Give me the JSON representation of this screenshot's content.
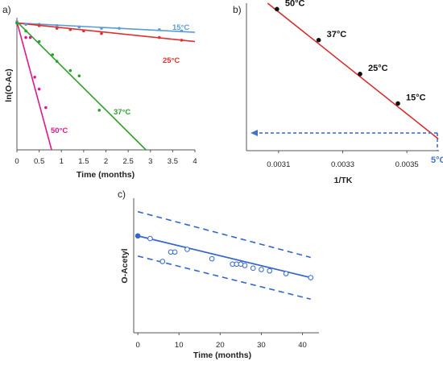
{
  "chart_data": [
    {
      "panel": "a)",
      "type": "scatter",
      "xlabel": "Time (months)",
      "ylabel": "ln(O-Ac)",
      "xlim": [
        0,
        4
      ],
      "ylim": [
        0,
        1
      ],
      "xticks": [
        "0",
        "0.5",
        "1",
        "1.5",
        "2",
        "2.5",
        "3",
        "3.5",
        "4"
      ],
      "grid": false,
      "series": [
        {
          "name": "15°C",
          "color": "#5b9bd5",
          "x": [
            0,
            0.2,
            0.5,
            0.9,
            1.4,
            1.9,
            2.3,
            3.2,
            3.7
          ],
          "y": [
            0.97,
            0.95,
            0.95,
            0.94,
            0.93,
            0.92,
            0.92,
            0.91,
            0.9
          ],
          "fit": [
            [
              0,
              0.96
            ],
            [
              4,
              0.89
            ]
          ]
        },
        {
          "name": "25°C",
          "color": "#e03030",
          "x": [
            0,
            0.5,
            0.9,
            1.2,
            1.5,
            1.9,
            3.2,
            3.7
          ],
          "y": [
            0.96,
            0.94,
            0.92,
            0.91,
            0.9,
            0.88,
            0.85,
            0.83
          ],
          "fit": [
            [
              0,
              0.96
            ],
            [
              4,
              0.82
            ]
          ]
        },
        {
          "name": "37°C",
          "color": "#2ca02c",
          "x": [
            0,
            0.2,
            0.5,
            0.8,
            0.9,
            1.2,
            1.4,
            1.85
          ],
          "y": [
            0.96,
            0.9,
            0.82,
            0.72,
            0.67,
            0.6,
            0.56,
            0.3
          ],
          "fit": [
            [
              0,
              0.97
            ],
            [
              2.9,
              0
            ]
          ]
        },
        {
          "name": "50°C",
          "color": "#e0188c",
          "x": [
            0.2,
            0.3,
            0.4,
            0.5,
            0.65
          ],
          "y": [
            0.85,
            0.85,
            0.55,
            0.46,
            0.32
          ],
          "fit": [
            [
              0,
              0.97
            ],
            [
              0.78,
              0
            ]
          ]
        }
      ]
    },
    {
      "panel": "b)",
      "type": "scatter",
      "xlabel": "1/TK",
      "xlim": [
        0.003,
        0.0036
      ],
      "xticks": [
        "0.0031",
        "0.0033",
        "0.0035"
      ],
      "color": "#d62728",
      "points": [
        {
          "label": "50°C",
          "x": 0.003095,
          "y": 0.96
        },
        {
          "label": "37°C",
          "x": 0.003225,
          "y": 0.75
        },
        {
          "label": "25°C",
          "x": 0.003354,
          "y": 0.52
        },
        {
          "label": "15°C",
          "x": 0.003472,
          "y": 0.32
        }
      ],
      "fit": [
        [
          0.003066,
          1.0
        ],
        [
          0.003598,
          0.08
        ]
      ],
      "extrapolation": {
        "label": "5°C",
        "x": 0.003595,
        "y": 0.12,
        "color": "#4472c4"
      }
    },
    {
      "panel": "c)",
      "type": "scatter",
      "xlabel": "Time (months)",
      "ylabel": "O-Acetyl",
      "xlim": [
        -1,
        44
      ],
      "ylim": [
        0,
        1
      ],
      "xticks": [
        "0",
        "10",
        "20",
        "30",
        "40"
      ],
      "color": "#3366cc",
      "points": {
        "x": [
          0,
          3,
          6,
          8,
          9,
          12,
          18,
          23,
          24,
          25,
          26,
          28,
          30,
          32,
          36,
          42
        ],
        "y": [
          0.72,
          0.7,
          0.53,
          0.6,
          0.6,
          0.62,
          0.55,
          0.51,
          0.51,
          0.51,
          0.5,
          0.48,
          0.47,
          0.46,
          0.44,
          0.41
        ]
      },
      "fit": [
        [
          0,
          0.72
        ],
        [
          42,
          0.41
        ]
      ],
      "band_upper": [
        [
          0,
          0.9
        ],
        [
          42,
          0.56
        ]
      ],
      "band_lower": [
        [
          0,
          0.57
        ],
        [
          42,
          0.25
        ]
      ]
    }
  ]
}
